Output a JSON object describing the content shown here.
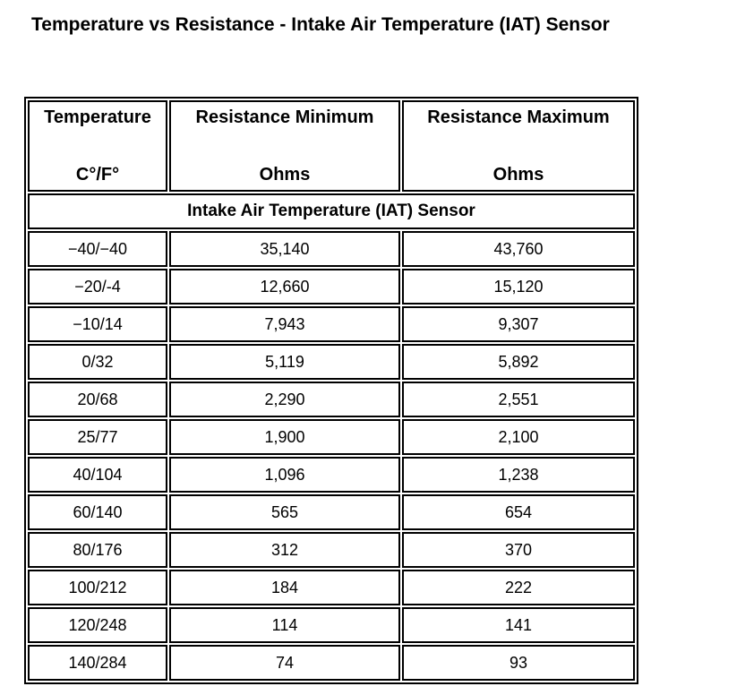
{
  "page_title": "Temperature vs Resistance - Intake Air Temperature (IAT) Sensor",
  "table": {
    "columns": [
      {
        "title": "Temperature",
        "unit": "C°/F°"
      },
      {
        "title": "Resistance Minimum",
        "unit": "Ohms"
      },
      {
        "title": "Resistance Maximum",
        "unit": "Ohms"
      }
    ],
    "section_header": "Intake Air Temperature (IAT) Sensor",
    "rows": [
      [
        "−40/−40",
        "35,140",
        "43,760"
      ],
      [
        "−20/-4",
        "12,660",
        "15,120"
      ],
      [
        "−10/14",
        "7,943",
        "9,307"
      ],
      [
        "0/32",
        "5,119",
        "5,892"
      ],
      [
        "20/68",
        "2,290",
        "2,551"
      ],
      [
        "25/77",
        "1,900",
        "2,100"
      ],
      [
        "40/104",
        "1,096",
        "1,238"
      ],
      [
        "60/140",
        "565",
        "654"
      ],
      [
        "80/176",
        "312",
        "370"
      ],
      [
        "100/212",
        "184",
        "222"
      ],
      [
        "120/248",
        "114",
        "141"
      ],
      [
        "140/284",
        "74",
        "93"
      ]
    ]
  }
}
